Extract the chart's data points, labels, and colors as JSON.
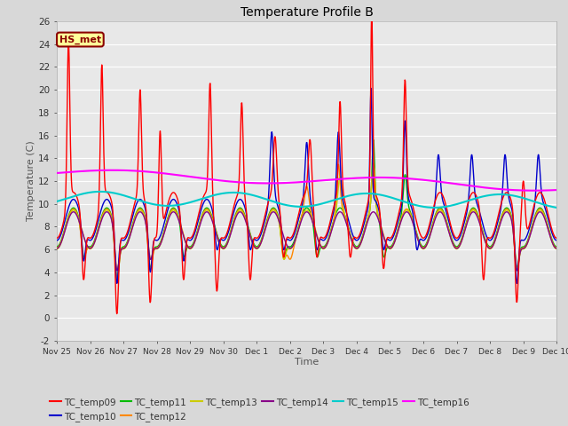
{
  "title": "Temperature Profile B",
  "xlabel": "Time",
  "ylabel": "Temperature (C)",
  "ylim": [
    -2,
    26
  ],
  "yticks": [
    -2,
    0,
    2,
    4,
    6,
    8,
    10,
    12,
    14,
    16,
    18,
    20,
    22,
    24,
    26
  ],
  "xtick_labels": [
    "Nov 25",
    "Nov 26",
    "Nov 27",
    "Nov 28",
    "Nov 29",
    "Nov 30",
    "Dec 1",
    "Dec 2",
    "Dec 3",
    "Dec 4",
    "Dec 5",
    "Dec 6",
    "Dec 7",
    "Dec 8",
    "Dec 9",
    "Dec 10"
  ],
  "annotation_text": "HS_met",
  "annotation_color": "#8B0000",
  "annotation_bg": "#FFFF99",
  "line_colors": {
    "TC_temp09": "#FF0000",
    "TC_temp10": "#0000CC",
    "TC_temp11": "#00BB00",
    "TC_temp12": "#FF8800",
    "TC_temp13": "#CCCC00",
    "TC_temp14": "#880088",
    "TC_temp15": "#00CCCC",
    "TC_temp16": "#FF00FF"
  }
}
